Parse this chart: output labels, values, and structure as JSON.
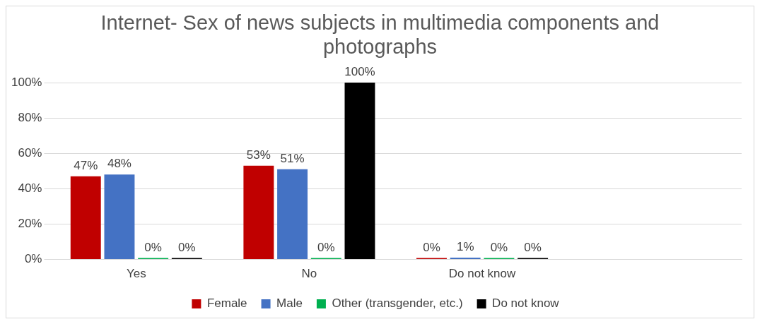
{
  "chart_data": {
    "type": "bar",
    "title": "Internet- Sex of news subjects in multimedia components and photographs",
    "categories": [
      "Yes",
      "No",
      "Do not know",
      null
    ],
    "series": [
      {
        "name": "Female",
        "color": "#c00000",
        "values": [
          47,
          53,
          0,
          null
        ],
        "value_labels": [
          "47%",
          "53%",
          "0%",
          null
        ]
      },
      {
        "name": "Male",
        "color": "#4472c4",
        "values": [
          48,
          51,
          1,
          null
        ],
        "value_labels": [
          "48%",
          "51%",
          "1%",
          null
        ]
      },
      {
        "name": "Other (transgender, etc.)",
        "color": "#00b050",
        "values": [
          0,
          0,
          0,
          null
        ],
        "value_labels": [
          "0%",
          "0%",
          "0%",
          null
        ]
      },
      {
        "name": "Do not know",
        "color": "#000000",
        "values": [
          0,
          100,
          0,
          null
        ],
        "value_labels": [
          "0%",
          "100%",
          "0%",
          null
        ]
      }
    ],
    "ylim": [
      0,
      100
    ],
    "yticks": [
      {
        "value": 0,
        "label": "0%"
      },
      {
        "value": 20,
        "label": "20%"
      },
      {
        "value": 40,
        "label": "40%"
      },
      {
        "value": 60,
        "label": "60%"
      },
      {
        "value": 80,
        "label": "80%"
      },
      {
        "value": 100,
        "label": "100%"
      }
    ],
    "grid": "y",
    "legend": "bottom"
  }
}
